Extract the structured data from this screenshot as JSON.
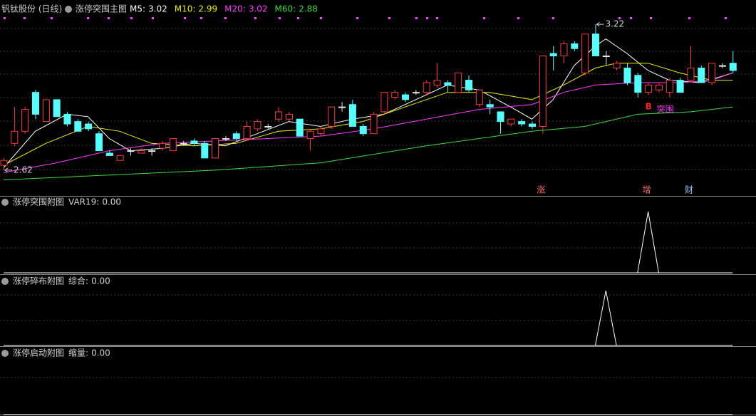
{
  "chart_data": [
    {
      "type": "candlestick",
      "title": "钒钛股份 (日线)",
      "subtitle": "涨停突围主图",
      "open": [
        2.64,
        2.73,
        2.78,
        2.94,
        2.82,
        2.91,
        2.85,
        2.82,
        2.81,
        2.77,
        2.69,
        2.66,
        2.7,
        2.69,
        2.7,
        2.71,
        2.7,
        2.73,
        2.74,
        2.73,
        2.67,
        2.75,
        2.77,
        2.75,
        2.79,
        2.8,
        2.83,
        2.83,
        2.83,
        2.75,
        2.77,
        2.8,
        2.88,
        2.89,
        2.8,
        2.77,
        2.86,
        2.92,
        2.93,
        2.94,
        2.94,
        2.97,
        2.98,
        2.94,
        2.99,
        2.89,
        2.89,
        2.86,
        2.81,
        2.82,
        2.81,
        2.8,
        3.1,
        3.09,
        3.14,
        3.02,
        3.18,
        3.09,
        3.04,
        3.04,
        3.01,
        2.94,
        2.95,
        2.94,
        2.99,
        2.99,
        3.04,
        2.98,
        3.05,
        3.06
      ],
      "high": [
        2.67,
        2.88,
        2.88,
        2.95,
        2.91,
        2.91,
        2.86,
        2.83,
        2.82,
        2.78,
        2.7,
        2.68,
        2.71,
        2.71,
        2.71,
        2.74,
        2.75,
        2.74,
        2.75,
        2.74,
        2.75,
        2.76,
        2.78,
        2.82,
        2.83,
        2.81,
        2.88,
        2.86,
        2.83,
        2.79,
        2.8,
        2.88,
        2.9,
        2.91,
        2.81,
        2.86,
        2.94,
        2.95,
        2.94,
        2.95,
        2.99,
        3.06,
        2.99,
        3.02,
        3.01,
        2.95,
        2.91,
        2.86,
        2.83,
        2.83,
        2.82,
        3.09,
        3.13,
        3.15,
        3.15,
        3.18,
        3.22,
        3.11,
        3.07,
        3.06,
        3.02,
        2.98,
        2.98,
        3.0,
        3.0,
        3.13,
        3.05,
        3.06,
        3.06,
        3.11
      ],
      "low": [
        2.62,
        2.72,
        2.77,
        2.83,
        2.82,
        2.84,
        2.8,
        2.78,
        2.78,
        2.7,
        2.68,
        2.66,
        2.68,
        2.69,
        2.68,
        2.7,
        2.7,
        2.72,
        2.72,
        2.67,
        2.67,
        2.74,
        2.74,
        2.74,
        2.78,
        2.79,
        2.82,
        2.82,
        2.76,
        2.7,
        2.76,
        2.79,
        2.86,
        2.8,
        2.76,
        2.77,
        2.85,
        2.91,
        2.9,
        2.93,
        2.93,
        2.96,
        2.94,
        2.94,
        2.94,
        2.88,
        2.85,
        2.77,
        2.8,
        2.8,
        2.79,
        2.77,
        3.03,
        3.06,
        3.11,
        3.01,
        3.09,
        3.05,
        3.03,
        2.97,
        2.92,
        2.93,
        2.94,
        2.92,
        2.94,
        2.98,
        2.98,
        2.97,
        3.04,
        3.02
      ],
      "close": [
        2.66,
        2.78,
        2.87,
        2.85,
        2.91,
        2.84,
        2.81,
        2.78,
        2.79,
        2.7,
        2.68,
        2.68,
        2.7,
        2.7,
        2.7,
        2.73,
        2.75,
        2.73,
        2.73,
        2.67,
        2.75,
        2.75,
        2.75,
        2.8,
        2.82,
        2.8,
        2.86,
        2.85,
        2.76,
        2.78,
        2.79,
        2.88,
        2.88,
        2.8,
        2.77,
        2.85,
        2.94,
        2.94,
        2.91,
        2.94,
        2.98,
        2.99,
        2.97,
        3.02,
        2.95,
        2.95,
        2.88,
        2.82,
        2.83,
        2.81,
        2.8,
        3.09,
        3.09,
        3.14,
        3.12,
        3.18,
        3.09,
        3.09,
        3.06,
        2.98,
        2.94,
        2.97,
        2.97,
        2.99,
        2.94,
        3.04,
        2.98,
        3.06,
        3.05,
        3.03
      ],
      "up_color": "#ff3b3b",
      "down_color": "#54ffff",
      "flat_color": "#e8e8e8",
      "ylim": [
        2.52,
        3.32
      ],
      "lines": [
        {
          "name": "M5:",
          "last": 3.02,
          "color": "#ffffff",
          "x": [
            0,
            3,
            6,
            8,
            10,
            12,
            15,
            18,
            21,
            24,
            27,
            30,
            33,
            36,
            39,
            42,
            45,
            48,
            50,
            52,
            54,
            56,
            57,
            59,
            61,
            63,
            66,
            69
          ],
          "values": [
            2.63,
            2.78,
            2.85,
            2.84,
            2.75,
            2.7,
            2.71,
            2.73,
            2.72,
            2.77,
            2.82,
            2.8,
            2.83,
            2.85,
            2.91,
            2.97,
            2.95,
            2.88,
            2.83,
            2.91,
            3.05,
            3.13,
            3.16,
            3.1,
            3.03,
            2.99,
            2.98,
            3.02
          ]
        },
        {
          "name": "M10:",
          "last": 2.99,
          "color": "#f0f000",
          "x": [
            0,
            4,
            8,
            11,
            14,
            18,
            22,
            26,
            30,
            34,
            38,
            42,
            46,
            50,
            53,
            56,
            58,
            61,
            64,
            67,
            69
          ],
          "values": [
            2.64,
            2.73,
            2.8,
            2.78,
            2.73,
            2.72,
            2.73,
            2.78,
            2.79,
            2.82,
            2.88,
            2.94,
            2.94,
            2.91,
            2.97,
            3.04,
            3.06,
            3.06,
            3.02,
            2.99,
            2.99
          ]
        },
        {
          "name": "M20:",
          "last": 3.02,
          "color": "#ff3cff",
          "x": [
            0,
            5,
            10,
            15,
            20,
            25,
            30,
            35,
            40,
            45,
            50,
            53,
            56,
            60,
            64,
            67,
            69
          ],
          "values": [
            2.61,
            2.65,
            2.7,
            2.73,
            2.74,
            2.75,
            2.76,
            2.79,
            2.83,
            2.87,
            2.89,
            2.94,
            2.97,
            2.98,
            2.98,
            2.99,
            3.02
          ]
        },
        {
          "name": "M60:",
          "last": 2.88,
          "color": "#3cdc3c",
          "x": [
            0,
            10,
            20,
            30,
            40,
            50,
            55,
            60,
            65,
            69
          ],
          "values": [
            2.58,
            2.6,
            2.62,
            2.65,
            2.72,
            2.78,
            2.8,
            2.85,
            2.86,
            2.88
          ]
        }
      ],
      "annotations": [
        {
          "index": 0,
          "value": 2.62
        },
        {
          "index": 56,
          "value": 3.22
        }
      ],
      "markers": [
        {
          "text": "涨",
          "index": 51
        },
        {
          "text": "增",
          "index": 61
        },
        {
          "text": "财",
          "index": 65
        }
      ],
      "signal": {
        "letter": "B",
        "text": "突围",
        "index": 61
      }
    },
    {
      "type": "spike",
      "title": "涨停突围附图",
      "indicator": "VAR19:",
      "last": {
        "value": 0,
        "label": "0.00"
      },
      "signal_index": 61,
      "signal_value": 1,
      "ylim": [
        0,
        1
      ]
    },
    {
      "type": "spike",
      "title": "涨停碎布附图",
      "indicator": "综合:",
      "last": {
        "value": 0,
        "label": "0.00"
      },
      "signal_index": 57,
      "signal_value": 1,
      "ylim": [
        0,
        1
      ]
    },
    {
      "type": "spike",
      "title": "涨停启动附图",
      "indicator": "缩量:",
      "last": {
        "value": 0,
        "label": "0.00"
      },
      "ylim": [
        0,
        1
      ]
    }
  ]
}
